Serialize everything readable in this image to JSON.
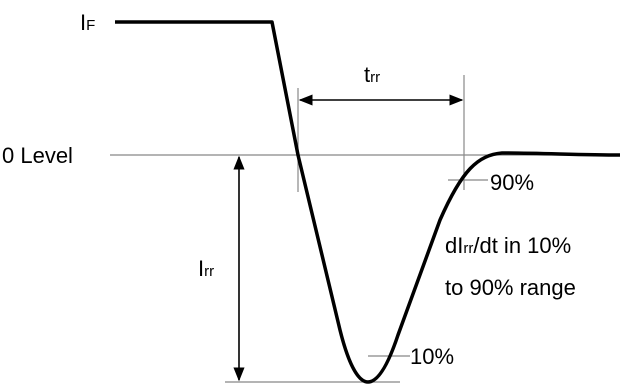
{
  "labels": {
    "if_main": "I",
    "if_sub": "F",
    "trr_main": "t",
    "trr_sub": "rr",
    "zero_level": "0 Level",
    "irr_main": "I",
    "irr_sub": "rr",
    "pct_90": "90%",
    "pct_10": "10%",
    "didt_prefix": "dI",
    "didt_sub": "rr",
    "didt_suffix": "/dt in 10%",
    "didt_line2": "to 90% range"
  },
  "colors": {
    "waveform": "#000000",
    "guide": "#888888",
    "text": "#000000"
  }
}
